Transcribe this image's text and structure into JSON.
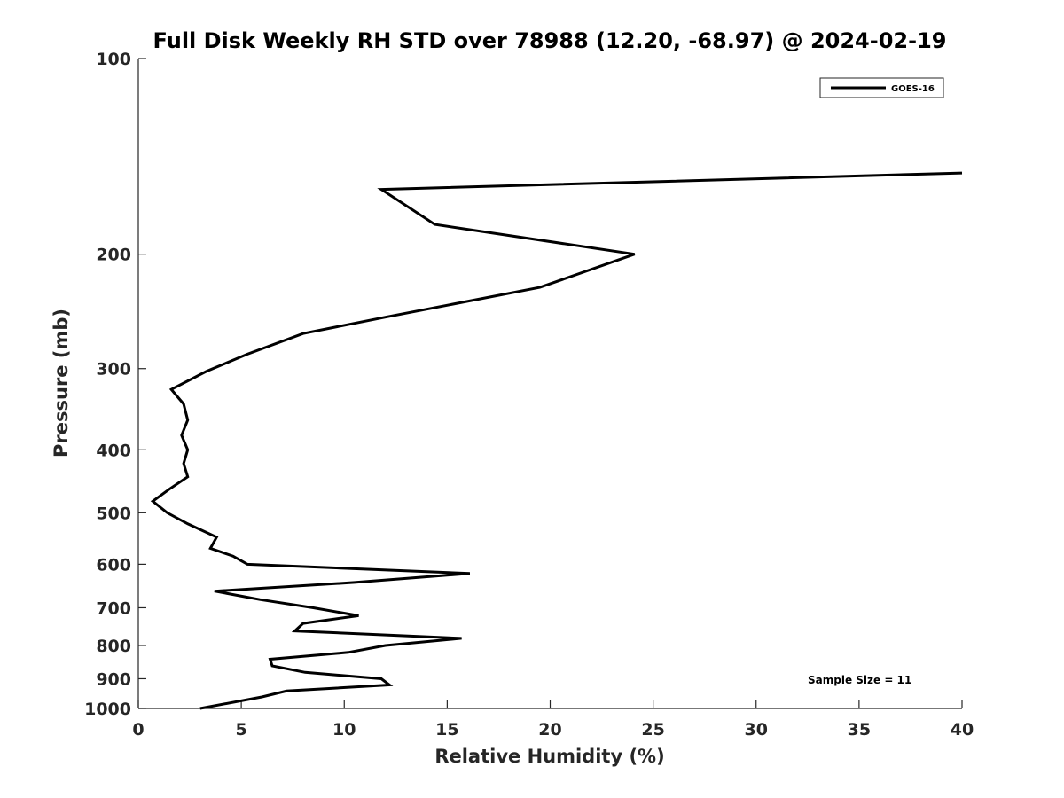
{
  "chart_data": {
    "type": "line",
    "title": "Full Disk Weekly RH STD over 78988 (12.20, -68.97) @ 2024-02-19",
    "xlabel": "Relative Humidity (%)",
    "ylabel": "Pressure (mb)",
    "xlim": [
      0,
      40
    ],
    "ylim": [
      1000,
      100
    ],
    "yscale": "log",
    "y_reversed": true,
    "x_ticks": [
      0,
      5,
      10,
      15,
      20,
      25,
      30,
      35,
      40
    ],
    "x_tick_labels": [
      "0",
      "5",
      "10",
      "15",
      "20",
      "25",
      "30",
      "35",
      "40"
    ],
    "y_ticks": [
      100,
      200,
      300,
      400,
      500,
      600,
      700,
      800,
      900,
      1000
    ],
    "y_tick_labels": [
      "100",
      "200",
      "300",
      "400",
      "500",
      "600",
      "700",
      "800",
      "900",
      "1000"
    ],
    "grid": false,
    "legend": {
      "position": "top-right",
      "entries": [
        "GOES-16"
      ]
    },
    "annotations": [
      {
        "text": "Sample Size = 11",
        "position": "bottom-right"
      }
    ],
    "series": [
      {
        "name": "GOES-16",
        "color": "#000000",
        "x": [
          40.0,
          11.8,
          14.4,
          24.1,
          19.5,
          12.0,
          8.0,
          5.3,
          3.3,
          1.6,
          2.2,
          2.4,
          2.1,
          2.4,
          2.2,
          2.4,
          1.5,
          0.7,
          1.4,
          2.4,
          3.8,
          3.5,
          4.6,
          5.3,
          16.1,
          10.5,
          3.7,
          5.9,
          8.5,
          10.7,
          8.0,
          7.6,
          15.7,
          12.0,
          10.2,
          6.4,
          6.5,
          8.1,
          11.8,
          12.2,
          7.2,
          6.0,
          3.0
        ],
        "y": [
          150,
          159,
          180,
          200,
          225,
          250,
          265,
          285,
          303,
          323,
          340,
          360,
          380,
          400,
          420,
          440,
          460,
          480,
          500,
          520,
          545,
          567,
          583,
          600,
          620,
          640,
          660,
          680,
          700,
          720,
          740,
          760,
          780,
          800,
          820,
          840,
          860,
          880,
          900,
          920,
          940,
          960,
          1000
        ]
      }
    ]
  }
}
